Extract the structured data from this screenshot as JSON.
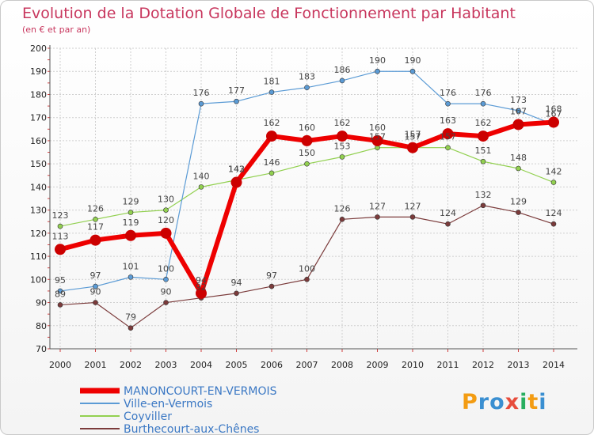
{
  "chart_data": {
    "type": "line",
    "title": "Evolution de la Dotation Globale de Fonctionnement par Habitant",
    "subtitle": "(en € et par an)",
    "xlabel": "",
    "ylabel": "",
    "x": [
      "2000",
      "2001",
      "2002",
      "2003",
      "2004",
      "2005",
      "2006",
      "2007",
      "2008",
      "2009",
      "2010",
      "2011",
      "2012",
      "2013",
      "2014"
    ],
    "ylim": [
      70,
      200
    ],
    "yticks": [
      "70",
      "80",
      "90",
      "100",
      "110",
      "120",
      "130",
      "140",
      "150",
      "160",
      "170",
      "180",
      "190",
      "200"
    ],
    "grid": true,
    "legend_position": "bottom-left",
    "series": [
      {
        "name": "MANONCOURT-EN-VERMOIS",
        "color": "#ee0000",
        "values": [
          113,
          117,
          119,
          120,
          94,
          142,
          162,
          160,
          162,
          160,
          157,
          163,
          162,
          167,
          168
        ]
      },
      {
        "name": "Ville-en-Vermois",
        "color": "#5b9bd5",
        "values": [
          95,
          97,
          101,
          100,
          176,
          177,
          181,
          183,
          186,
          190,
          190,
          176,
          176,
          173,
          167
        ]
      },
      {
        "name": "Coyviller",
        "color": "#92d050",
        "values": [
          123,
          126,
          129,
          130,
          140,
          143,
          146,
          150,
          153,
          157,
          157,
          157,
          151,
          148,
          142
        ]
      },
      {
        "name": "Burthecourt-aux-Chênes",
        "color": "#7b3b3b",
        "values": [
          89,
          90,
          79,
          90,
          92,
          94,
          97,
          100,
          126,
          127,
          127,
          124,
          132,
          129,
          124
        ]
      }
    ]
  },
  "logo": {
    "letters": [
      "P",
      "r",
      "o",
      "x",
      "i",
      "t",
      "i"
    ]
  }
}
